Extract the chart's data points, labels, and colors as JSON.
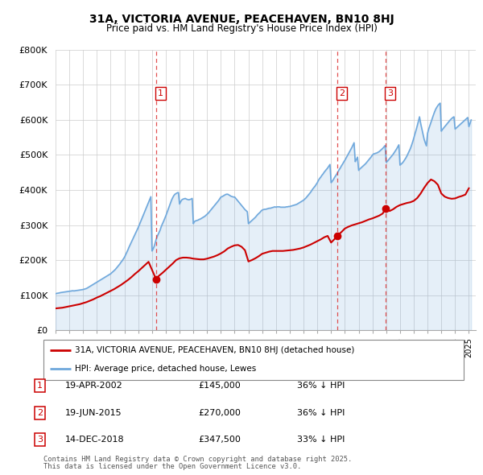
{
  "title": "31A, VICTORIA AVENUE, PEACEHAVEN, BN10 8HJ",
  "subtitle": "Price paid vs. HM Land Registry's House Price Index (HPI)",
  "hpi_label": "HPI: Average price, detached house, Lewes",
  "property_label": "31A, VICTORIA AVENUE, PEACEHAVEN, BN10 8HJ (detached house)",
  "hpi_color": "#6fa8dc",
  "property_color": "#cc0000",
  "background_color": "#ffffff",
  "grid_color": "#cccccc",
  "ylim": [
    0,
    800000
  ],
  "yticks": [
    0,
    100000,
    200000,
    300000,
    400000,
    500000,
    600000,
    700000,
    800000
  ],
  "ytick_labels": [
    "£0",
    "£100K",
    "£200K",
    "£300K",
    "£400K",
    "£500K",
    "£600K",
    "£700K",
    "£800K"
  ],
  "xlim_start": 1995.0,
  "xlim_end": 2025.5,
  "transactions": [
    {
      "num": 1,
      "date_str": "19-APR-2002",
      "year": 2002.3,
      "price": 145000,
      "pct": "36%",
      "label": "36% ↓ HPI"
    },
    {
      "num": 2,
      "date_str": "19-JUN-2015",
      "year": 2015.46,
      "price": 270000,
      "pct": "36%",
      "label": "36% ↓ HPI"
    },
    {
      "num": 3,
      "date_str": "14-DEC-2018",
      "year": 2018.95,
      "price": 347500,
      "pct": "33%",
      "label": "33% ↓ HPI"
    }
  ],
  "footer_line1": "Contains HM Land Registry data © Crown copyright and database right 2025.",
  "footer_line2": "This data is licensed under the Open Government Licence v3.0.",
  "hpi_data_x": [
    1995.0,
    1995.083,
    1995.167,
    1995.25,
    1995.333,
    1995.417,
    1995.5,
    1995.583,
    1995.667,
    1995.75,
    1995.833,
    1995.917,
    1996.0,
    1996.083,
    1996.167,
    1996.25,
    1996.333,
    1996.417,
    1996.5,
    1996.583,
    1996.667,
    1996.75,
    1996.833,
    1996.917,
    1997.0,
    1997.083,
    1997.167,
    1997.25,
    1997.333,
    1997.417,
    1997.5,
    1997.583,
    1997.667,
    1997.75,
    1997.833,
    1997.917,
    1998.0,
    1998.083,
    1998.167,
    1998.25,
    1998.333,
    1998.417,
    1998.5,
    1998.583,
    1998.667,
    1998.75,
    1998.833,
    1998.917,
    1999.0,
    1999.083,
    1999.167,
    1999.25,
    1999.333,
    1999.417,
    1999.5,
    1999.583,
    1999.667,
    1999.75,
    1999.833,
    1999.917,
    2000.0,
    2000.083,
    2000.167,
    2000.25,
    2000.333,
    2000.417,
    2000.5,
    2000.583,
    2000.667,
    2000.75,
    2000.833,
    2000.917,
    2001.0,
    2001.083,
    2001.167,
    2001.25,
    2001.333,
    2001.417,
    2001.5,
    2001.583,
    2001.667,
    2001.75,
    2001.833,
    2001.917,
    2002.0,
    2002.083,
    2002.167,
    2002.25,
    2002.333,
    2002.417,
    2002.5,
    2002.583,
    2002.667,
    2002.75,
    2002.833,
    2002.917,
    2003.0,
    2003.083,
    2003.167,
    2003.25,
    2003.333,
    2003.417,
    2003.5,
    2003.583,
    2003.667,
    2003.75,
    2003.833,
    2003.917,
    2004.0,
    2004.083,
    2004.167,
    2004.25,
    2004.333,
    2004.417,
    2004.5,
    2004.583,
    2004.667,
    2004.75,
    2004.833,
    2004.917,
    2005.0,
    2005.083,
    2005.167,
    2005.25,
    2005.333,
    2005.417,
    2005.5,
    2005.583,
    2005.667,
    2005.75,
    2005.833,
    2005.917,
    2006.0,
    2006.083,
    2006.167,
    2006.25,
    2006.333,
    2006.417,
    2006.5,
    2006.583,
    2006.667,
    2006.75,
    2006.833,
    2006.917,
    2007.0,
    2007.083,
    2007.167,
    2007.25,
    2007.333,
    2007.417,
    2007.5,
    2007.583,
    2007.667,
    2007.75,
    2007.833,
    2007.917,
    2008.0,
    2008.083,
    2008.167,
    2008.25,
    2008.333,
    2008.417,
    2008.5,
    2008.583,
    2008.667,
    2008.75,
    2008.833,
    2008.917,
    2009.0,
    2009.083,
    2009.167,
    2009.25,
    2009.333,
    2009.417,
    2009.5,
    2009.583,
    2009.667,
    2009.75,
    2009.833,
    2009.917,
    2010.0,
    2010.083,
    2010.167,
    2010.25,
    2010.333,
    2010.417,
    2010.5,
    2010.583,
    2010.667,
    2010.75,
    2010.833,
    2010.917,
    2011.0,
    2011.083,
    2011.167,
    2011.25,
    2011.333,
    2011.417,
    2011.5,
    2011.583,
    2011.667,
    2011.75,
    2011.833,
    2011.917,
    2012.0,
    2012.083,
    2012.167,
    2012.25,
    2012.333,
    2012.417,
    2012.5,
    2012.583,
    2012.667,
    2012.75,
    2012.833,
    2012.917,
    2013.0,
    2013.083,
    2013.167,
    2013.25,
    2013.333,
    2013.417,
    2013.5,
    2013.583,
    2013.667,
    2013.75,
    2013.833,
    2013.917,
    2014.0,
    2014.083,
    2014.167,
    2014.25,
    2014.333,
    2014.417,
    2014.5,
    2014.583,
    2014.667,
    2014.75,
    2014.833,
    2014.917,
    2015.0,
    2015.083,
    2015.167,
    2015.25,
    2015.333,
    2015.417,
    2015.5,
    2015.583,
    2015.667,
    2015.75,
    2015.833,
    2015.917,
    2016.0,
    2016.083,
    2016.167,
    2016.25,
    2016.333,
    2016.417,
    2016.5,
    2016.583,
    2016.667,
    2016.75,
    2016.833,
    2016.917,
    2017.0,
    2017.083,
    2017.167,
    2017.25,
    2017.333,
    2017.417,
    2017.5,
    2017.583,
    2017.667,
    2017.75,
    2017.833,
    2017.917,
    2018.0,
    2018.083,
    2018.167,
    2018.25,
    2018.333,
    2018.417,
    2018.5,
    2018.583,
    2018.667,
    2018.75,
    2018.833,
    2018.917,
    2019.0,
    2019.083,
    2019.167,
    2019.25,
    2019.333,
    2019.417,
    2019.5,
    2019.583,
    2019.667,
    2019.75,
    2019.833,
    2019.917,
    2020.0,
    2020.083,
    2020.167,
    2020.25,
    2020.333,
    2020.417,
    2020.5,
    2020.583,
    2020.667,
    2020.75,
    2020.833,
    2020.917,
    2021.0,
    2021.083,
    2021.167,
    2021.25,
    2021.333,
    2021.417,
    2021.5,
    2021.583,
    2021.667,
    2021.75,
    2021.833,
    2021.917,
    2022.0,
    2022.083,
    2022.167,
    2022.25,
    2022.333,
    2022.417,
    2022.5,
    2022.583,
    2022.667,
    2022.75,
    2022.833,
    2022.917,
    2023.0,
    2023.083,
    2023.167,
    2023.25,
    2023.333,
    2023.417,
    2023.5,
    2023.583,
    2023.667,
    2023.75,
    2023.833,
    2023.917,
    2024.0,
    2024.083,
    2024.167,
    2024.25,
    2024.333,
    2024.417,
    2024.5,
    2024.583,
    2024.667,
    2024.75,
    2024.833,
    2024.917,
    2025.0,
    2025.083,
    2025.167
  ],
  "hpi_data_y": [
    104000,
    105000,
    105500,
    106000,
    107000,
    107500,
    108000,
    108500,
    109000,
    109500,
    110000,
    110500,
    111000,
    111500,
    112000,
    112500,
    112000,
    112500,
    113000,
    113500,
    114000,
    114500,
    115000,
    115500,
    116000,
    117000,
    118000,
    119000,
    121000,
    123000,
    125000,
    127000,
    129000,
    131000,
    133000,
    135000,
    137000,
    139000,
    141000,
    143000,
    145000,
    147000,
    149000,
    151000,
    153000,
    155000,
    157000,
    159000,
    161000,
    164000,
    167000,
    170000,
    173000,
    177000,
    181000,
    185000,
    189000,
    194000,
    198000,
    203000,
    208000,
    215000,
    222000,
    229000,
    237000,
    244000,
    251000,
    258000,
    265000,
    272000,
    279000,
    286000,
    293000,
    301000,
    309000,
    317000,
    325000,
    333000,
    341000,
    349000,
    357000,
    365000,
    373000,
    381000,
    226000,
    232000,
    240000,
    252000,
    263000,
    271000,
    278000,
    285000,
    295000,
    303000,
    310000,
    318000,
    326000,
    335000,
    344000,
    353000,
    362000,
    371000,
    378000,
    384000,
    388000,
    390000,
    392000,
    393000,
    360000,
    367000,
    372000,
    374000,
    375000,
    376000,
    374000,
    373000,
    372000,
    373000,
    374000,
    376000,
    304000,
    310000,
    312000,
    313000,
    314000,
    316000,
    317000,
    319000,
    321000,
    323000,
    325000,
    328000,
    331000,
    334000,
    338000,
    342000,
    346000,
    350000,
    354000,
    358000,
    362000,
    366000,
    370000,
    375000,
    380000,
    381000,
    383000,
    385000,
    387000,
    388000,
    388000,
    386000,
    384000,
    382000,
    381000,
    380000,
    380000,
    376000,
    372000,
    368000,
    364000,
    360000,
    356000,
    352000,
    348000,
    344000,
    341000,
    338000,
    304000,
    307000,
    310000,
    313000,
    316000,
    319000,
    322000,
    326000,
    330000,
    333000,
    336000,
    340000,
    343000,
    344000,
    345000,
    345000,
    346000,
    347000,
    348000,
    348000,
    349000,
    350000,
    351000,
    352000,
    351000,
    352000,
    352000,
    352000,
    351000,
    351000,
    351000,
    351000,
    351000,
    352000,
    352000,
    353000,
    353000,
    354000,
    355000,
    356000,
    357000,
    358000,
    359000,
    361000,
    363000,
    365000,
    367000,
    369000,
    371000,
    374000,
    377000,
    381000,
    385000,
    389000,
    393000,
    398000,
    403000,
    407000,
    411000,
    416000,
    421000,
    428000,
    433000,
    437000,
    442000,
    446000,
    451000,
    455000,
    459000,
    463000,
    468000,
    473000,
    421000,
    425000,
    430000,
    436000,
    441000,
    446000,
    452000,
    458000,
    463000,
    469000,
    474000,
    480000,
    485000,
    491000,
    497000,
    503000,
    509000,
    515000,
    521000,
    528000,
    535000,
    481000,
    487000,
    494000,
    456000,
    460000,
    463000,
    466000,
    469000,
    472000,
    475000,
    479000,
    483000,
    487000,
    491000,
    495000,
    500000,
    503000,
    504000,
    505000,
    506000,
    508000,
    510000,
    513000,
    516000,
    519000,
    523000,
    527000,
    479000,
    482000,
    486000,
    490000,
    494000,
    498000,
    502000,
    507000,
    512000,
    517000,
    523000,
    529000,
    471000,
    474000,
    477000,
    481000,
    486000,
    491000,
    497000,
    504000,
    511000,
    518000,
    527000,
    537000,
    548000,
    560000,
    571000,
    583000,
    596000,
    609000,
    590000,
    575000,
    560000,
    545000,
    535000,
    526000,
    562000,
    574000,
    584000,
    594000,
    604000,
    613000,
    622000,
    630000,
    636000,
    641000,
    645000,
    648000,
    568000,
    573000,
    577000,
    581000,
    585000,
    589000,
    593000,
    597000,
    601000,
    604000,
    607000,
    609000,
    574000,
    577000,
    580000,
    583000,
    586000,
    589000,
    592000,
    595000,
    598000,
    601000,
    604000,
    607000,
    581000,
    590000,
    600000
  ],
  "prop_data_x": [
    1995.0,
    1995.25,
    1995.5,
    1995.75,
    1996.0,
    1996.25,
    1996.5,
    1996.75,
    1997.0,
    1997.25,
    1997.5,
    1997.75,
    1998.0,
    1998.25,
    1998.5,
    1998.75,
    1999.0,
    1999.25,
    1999.5,
    1999.75,
    2000.0,
    2000.25,
    2000.5,
    2000.75,
    2001.0,
    2001.25,
    2001.5,
    2001.75,
    2002.3,
    2002.5,
    2002.75,
    2003.0,
    2003.25,
    2003.5,
    2003.75,
    2004.0,
    2004.25,
    2004.5,
    2004.75,
    2005.0,
    2005.25,
    2005.5,
    2005.75,
    2006.0,
    2006.25,
    2006.5,
    2006.75,
    2007.0,
    2007.25,
    2007.5,
    2007.75,
    2008.0,
    2008.25,
    2008.5,
    2008.75,
    2009.0,
    2009.25,
    2009.5,
    2009.75,
    2010.0,
    2010.25,
    2010.5,
    2010.75,
    2011.0,
    2011.25,
    2011.5,
    2011.75,
    2012.0,
    2012.25,
    2012.5,
    2012.75,
    2013.0,
    2013.25,
    2013.5,
    2013.75,
    2014.0,
    2014.25,
    2014.5,
    2014.75,
    2015.0,
    2015.25,
    2015.46,
    2015.75,
    2016.0,
    2016.25,
    2016.5,
    2016.75,
    2017.0,
    2017.25,
    2017.5,
    2017.75,
    2018.0,
    2018.25,
    2018.5,
    2018.75,
    2018.95,
    2019.25,
    2019.5,
    2019.75,
    2020.0,
    2020.25,
    2020.5,
    2020.75,
    2021.0,
    2021.25,
    2021.5,
    2021.75,
    2022.0,
    2022.25,
    2022.5,
    2022.75,
    2023.0,
    2023.25,
    2023.5,
    2023.75,
    2024.0,
    2024.25,
    2024.5,
    2024.75,
    2025.0
  ],
  "prop_data_y": [
    62000,
    63000,
    64000,
    66000,
    68000,
    70000,
    72000,
    74000,
    77000,
    80000,
    84000,
    88000,
    93000,
    97000,
    102000,
    107000,
    112000,
    117000,
    123000,
    129000,
    136000,
    143000,
    151000,
    160000,
    168000,
    177000,
    186000,
    195000,
    145000,
    155000,
    163000,
    172000,
    181000,
    190000,
    200000,
    205000,
    207000,
    207000,
    206000,
    204000,
    203000,
    202000,
    202000,
    204000,
    207000,
    210000,
    214000,
    219000,
    225000,
    233000,
    238000,
    242000,
    243000,
    238000,
    228000,
    196000,
    200000,
    205000,
    211000,
    218000,
    221000,
    224000,
    226000,
    226000,
    226000,
    226000,
    227000,
    228000,
    229000,
    231000,
    233000,
    236000,
    240000,
    244000,
    249000,
    254000,
    259000,
    265000,
    269000,
    250000,
    260000,
    270000,
    280000,
    290000,
    295000,
    299000,
    302000,
    305000,
    308000,
    312000,
    316000,
    319000,
    323000,
    327000,
    333000,
    347500,
    340000,
    345000,
    352000,
    357000,
    360000,
    363000,
    365000,
    369000,
    377000,
    390000,
    406000,
    420000,
    430000,
    425000,
    415000,
    390000,
    381000,
    377000,
    375000,
    376000,
    380000,
    383000,
    387000,
    405000
  ]
}
